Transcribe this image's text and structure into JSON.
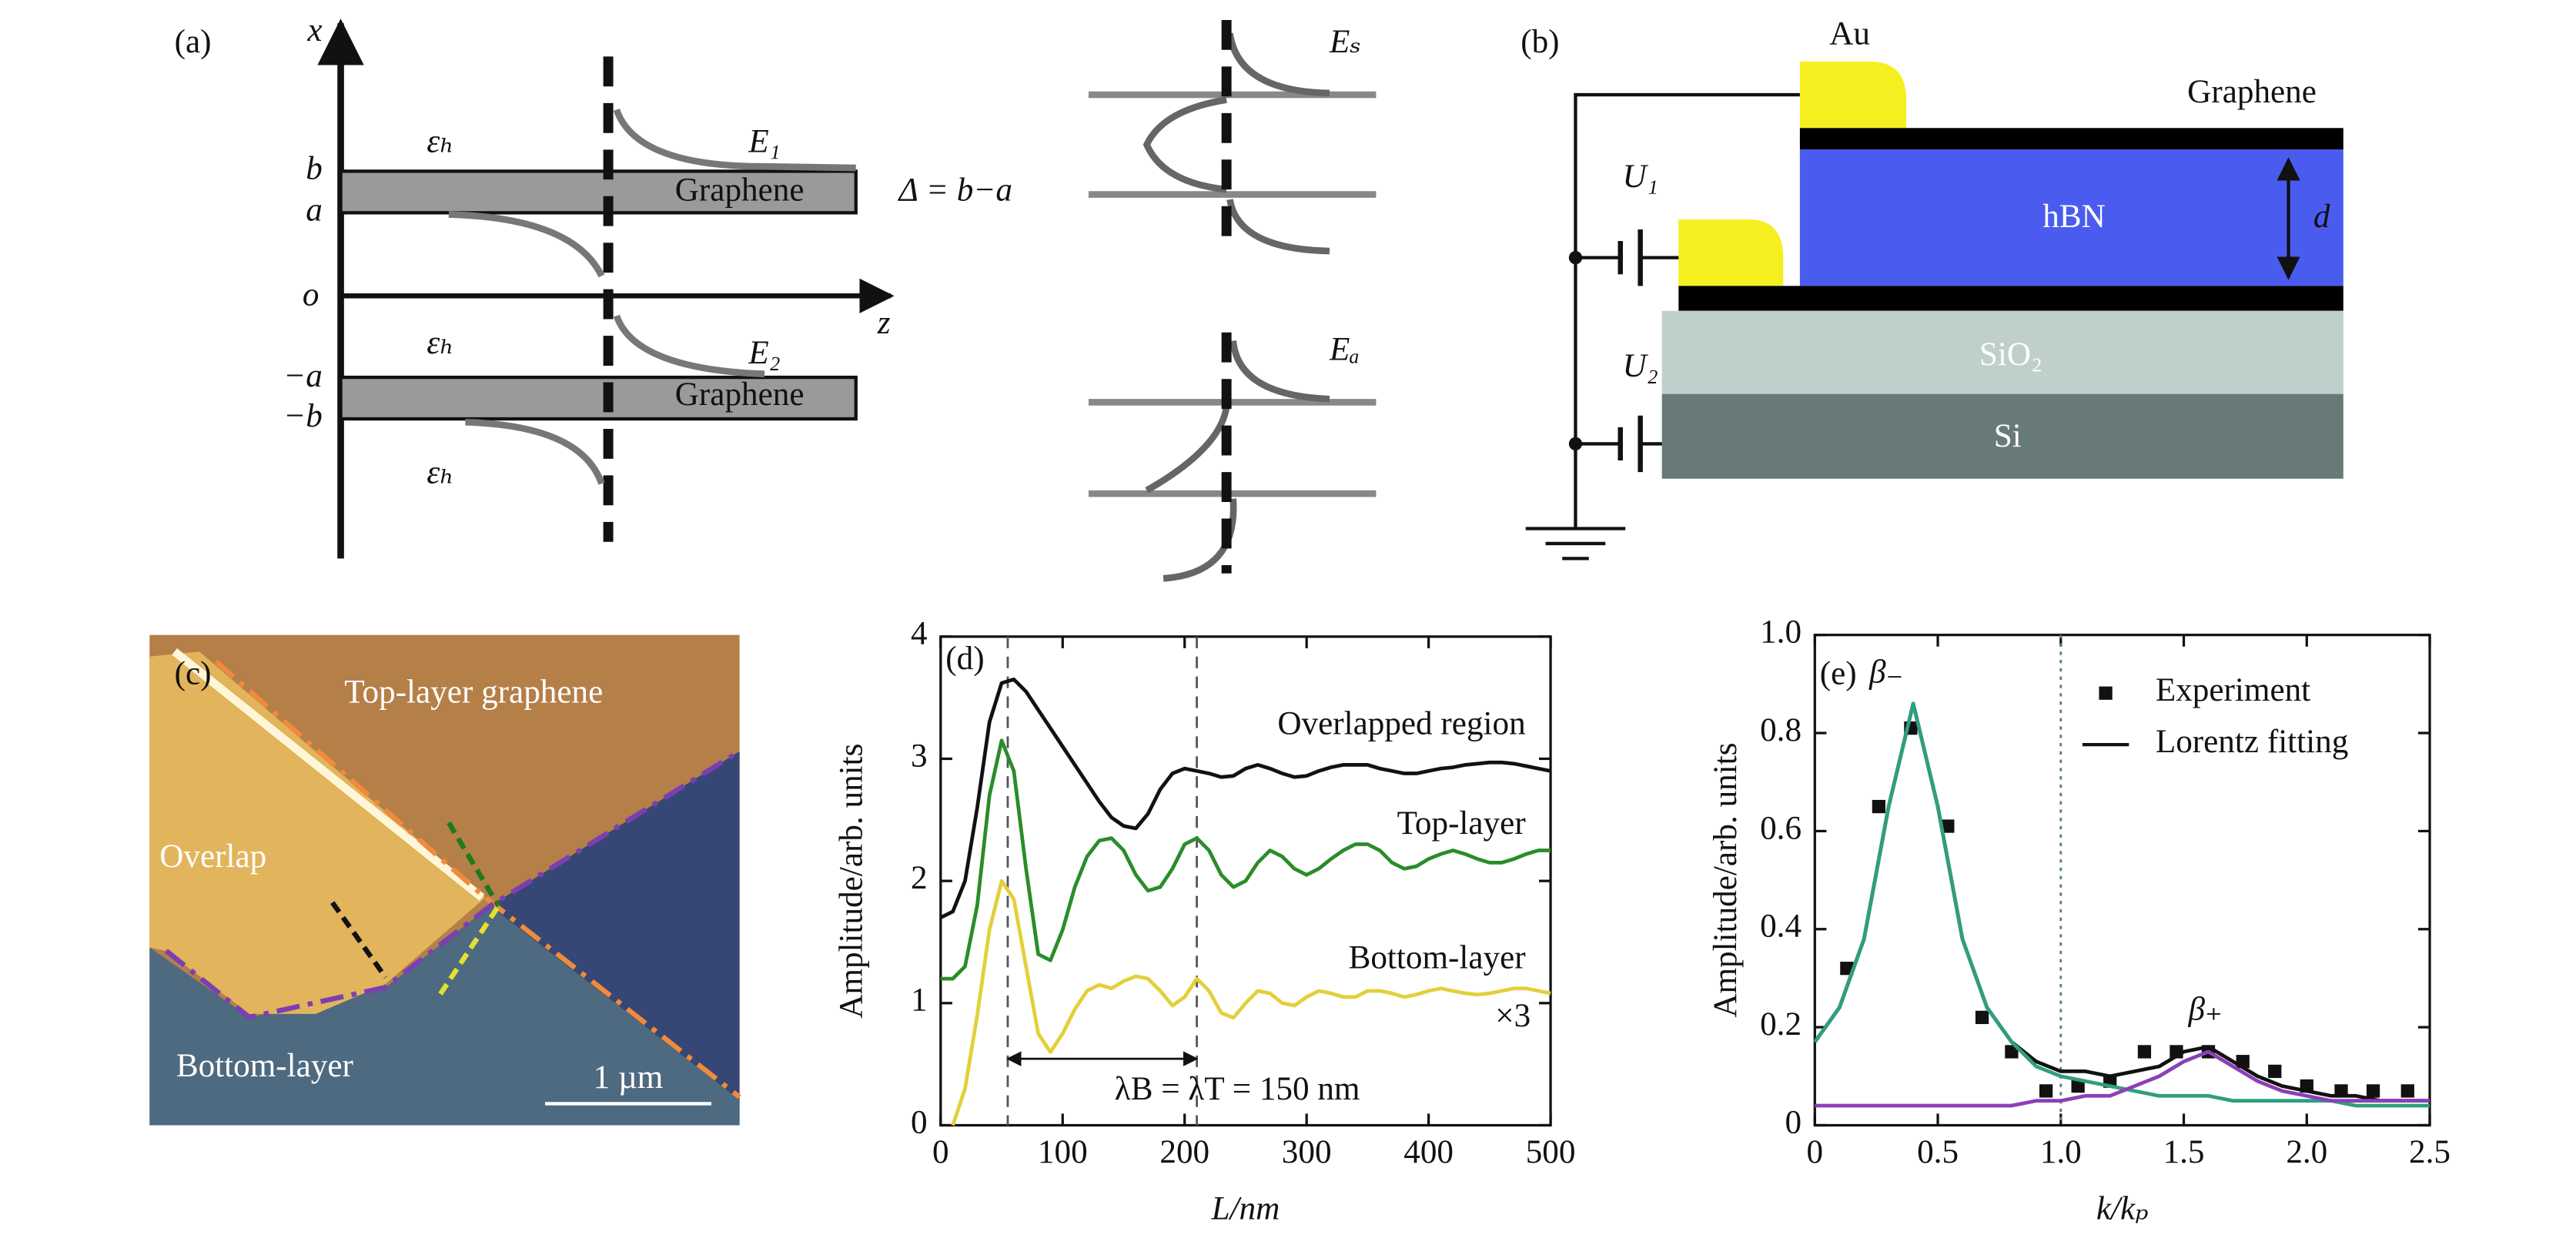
{
  "panel_a": {
    "label": "(a)",
    "x_axis": "x",
    "z_axis": "z",
    "origin": "o",
    "ticks": [
      "b",
      "a",
      "−a",
      "−b"
    ],
    "host": [
      "εₕ",
      "εₕ",
      "εₕ"
    ],
    "fields": [
      "E₁",
      "E₂"
    ],
    "layers": [
      "Graphene",
      "Graphene"
    ],
    "thickness": "Δ = b−a",
    "modes": [
      "Eₛ",
      "Eₐ"
    ]
  },
  "panel_b": {
    "label": "(b)",
    "electrode": "Au",
    "top_layer": "Graphene",
    "voltages": [
      "U₁",
      "U₂"
    ],
    "spacer": "hBN",
    "spacer_thickness": "d",
    "oxide": "SiO₂",
    "substrate": "Si"
  },
  "panel_c": {
    "label": "(c)",
    "regions": [
      "Top-layer graphene",
      "Overlap",
      "Bottom-layer"
    ],
    "scale_bar": "1 µm"
  },
  "chart_data": [
    {
      "type": "line",
      "label": "(d)",
      "xlabel": "L/nm",
      "ylabel": "Amplitude/arb. units",
      "x": [
        0,
        10,
        20,
        30,
        40,
        50,
        60,
        70,
        80,
        90,
        100,
        110,
        120,
        130,
        140,
        150,
        160,
        170,
        180,
        190,
        200,
        210,
        220,
        230,
        240,
        250,
        260,
        270,
        280,
        290,
        300,
        310,
        320,
        330,
        340,
        350,
        360,
        370,
        380,
        390,
        400,
        410,
        420,
        430,
        440,
        450,
        460,
        470,
        480,
        490,
        500
      ],
      "xlim": [
        0,
        500
      ],
      "xticks": [
        0,
        100,
        200,
        300,
        400,
        500
      ],
      "ylim": [
        0,
        4
      ],
      "yticks": [
        0,
        1,
        2,
        3,
        4
      ],
      "vlines": [
        55,
        210
      ],
      "vline_style": "dashed",
      "annotations": [
        "×3",
        "λB = λT = 150 nm"
      ],
      "series": [
        {
          "name": "Overlapped region",
          "color": "#111111",
          "values": [
            1.7,
            1.75,
            2.0,
            2.6,
            3.3,
            3.62,
            3.65,
            3.55,
            3.4,
            3.25,
            3.1,
            2.95,
            2.8,
            2.65,
            2.52,
            2.45,
            2.43,
            2.55,
            2.75,
            2.88,
            2.92,
            2.9,
            2.88,
            2.85,
            2.86,
            2.92,
            2.95,
            2.92,
            2.88,
            2.85,
            2.86,
            2.9,
            2.93,
            2.95,
            2.95,
            2.95,
            2.92,
            2.9,
            2.88,
            2.88,
            2.9,
            2.92,
            2.93,
            2.95,
            2.96,
            2.97,
            2.97,
            2.96,
            2.94,
            2.92,
            2.9
          ]
        },
        {
          "name": "Top-layer",
          "color": "#2a8c2a",
          "values": [
            1.2,
            1.2,
            1.3,
            1.8,
            2.7,
            3.15,
            2.9,
            2.1,
            1.4,
            1.35,
            1.6,
            1.95,
            2.2,
            2.33,
            2.35,
            2.25,
            2.05,
            1.92,
            1.95,
            2.1,
            2.3,
            2.35,
            2.25,
            2.05,
            1.95,
            2.0,
            2.15,
            2.25,
            2.2,
            2.1,
            2.05,
            2.1,
            2.18,
            2.25,
            2.3,
            2.3,
            2.25,
            2.15,
            2.1,
            2.12,
            2.18,
            2.22,
            2.25,
            2.22,
            2.18,
            2.15,
            2.15,
            2.18,
            2.22,
            2.25,
            2.25
          ]
        },
        {
          "name": "Bottom-layer",
          "color": "#e3cf3a",
          "values": [
            null,
            0,
            0.3,
            0.9,
            1.6,
            2.0,
            1.85,
            1.3,
            0.75,
            0.6,
            0.75,
            0.95,
            1.1,
            1.15,
            1.12,
            1.18,
            1.22,
            1.2,
            1.1,
            0.98,
            1.05,
            1.2,
            1.1,
            0.92,
            0.88,
            1.0,
            1.1,
            1.08,
            1.0,
            0.98,
            1.05,
            1.1,
            1.08,
            1.05,
            1.05,
            1.1,
            1.1,
            1.08,
            1.05,
            1.07,
            1.1,
            1.12,
            1.1,
            1.08,
            1.07,
            1.08,
            1.1,
            1.12,
            1.12,
            1.1,
            1.08
          ]
        }
      ]
    },
    {
      "type": "line",
      "label": "(e)",
      "xlabel": "k/kₚ",
      "ylabel": "Amplitude/arb. units",
      "x": [
        0,
        0.1,
        0.2,
        0.3,
        0.4,
        0.5,
        0.6,
        0.7,
        0.8,
        0.9,
        1.0,
        1.1,
        1.2,
        1.3,
        1.4,
        1.5,
        1.6,
        1.7,
        1.8,
        1.9,
        2.0,
        2.1,
        2.2,
        2.3,
        2.4,
        2.5
      ],
      "xlim": [
        0,
        2.5
      ],
      "xticks": [
        0,
        0.5,
        {
          "value": 1,
          "label": "1.0"
        },
        1.5,
        {
          "value": 2,
          "label": "2.0"
        },
        2.5
      ],
      "ylim": [
        0,
        1
      ],
      "yticks": [
        0,
        0.2,
        0.4,
        0.6,
        0.8,
        {
          "value": 1,
          "label": "1.0"
        }
      ],
      "vlines": [
        1.0
      ],
      "vline_style": "dotted",
      "legend": "upper right",
      "series": [
        {
          "name": "Experiment",
          "color": "#111111",
          "marker": "square",
          "in_legend": true,
          "x": [
            0.13,
            0.26,
            0.39,
            0.54,
            0.68,
            0.8,
            0.94,
            1.07,
            1.2,
            1.34,
            1.47,
            1.6,
            1.74,
            1.87,
            2.0,
            2.14,
            2.27,
            2.41
          ],
          "values": [
            0.32,
            0.65,
            0.81,
            0.61,
            0.22,
            0.15,
            0.07,
            0.08,
            0.09,
            0.15,
            0.15,
            0.15,
            0.13,
            0.11,
            0.08,
            0.07,
            0.07,
            0.07
          ]
        },
        {
          "name": "Lorentz fitting",
          "color": "#111111",
          "in_legend": true,
          "values": [
            0.17,
            0.24,
            0.38,
            0.65,
            0.86,
            0.65,
            0.38,
            0.24,
            0.17,
            0.13,
            0.11,
            0.11,
            0.1,
            0.11,
            0.12,
            0.15,
            0.16,
            0.13,
            0.1,
            0.08,
            0.07,
            0.06,
            0.06,
            0.05,
            0.05,
            0.05
          ]
        },
        {
          "name": "β₋",
          "color": "#2f9e80",
          "in_legend": false,
          "values": [
            0.17,
            0.24,
            0.38,
            0.65,
            0.86,
            0.65,
            0.38,
            0.24,
            0.17,
            0.12,
            0.1,
            0.09,
            0.08,
            0.07,
            0.06,
            0.06,
            0.06,
            0.05,
            0.05,
            0.05,
            0.05,
            0.05,
            0.04,
            0.04,
            0.04,
            0.04
          ]
        },
        {
          "name": "β₊",
          "color": "#8c3fb8",
          "in_legend": false,
          "values": [
            0.04,
            0.04,
            0.04,
            0.04,
            0.04,
            0.04,
            0.04,
            0.04,
            0.04,
            0.05,
            0.05,
            0.06,
            0.06,
            0.08,
            0.1,
            0.13,
            0.15,
            0.12,
            0.09,
            0.07,
            0.06,
            0.05,
            0.05,
            0.05,
            0.05,
            0.05
          ]
        }
      ]
    }
  ]
}
